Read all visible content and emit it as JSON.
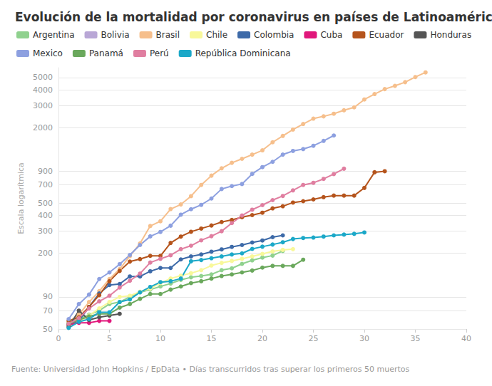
{
  "chart_data": {
    "type": "line",
    "title": "Evolución de la mortalidad por coronavirus en países de Latinoamérica",
    "y_label": "Escala logarítmica",
    "footer": "Fuente: Universidad John Hopkins / EpData • Días transcurridos tras superar los primeros 50 muertos",
    "log": "y",
    "grid": true,
    "legend": "top",
    "marker": "circle",
    "xlim": [
      0,
      40
    ],
    "xticks": [
      0,
      5,
      10,
      15,
      20,
      25,
      30,
      35,
      40
    ],
    "ylim": [
      50,
      6000
    ],
    "yticks": [
      50,
      70,
      90,
      200,
      300,
      400,
      500,
      700,
      900,
      2000,
      3000,
      4000,
      5000
    ],
    "series": [
      {
        "name": "Argentina",
        "color": "#8fd18e",
        "x": [
          1,
          2,
          3,
          4,
          5,
          6,
          7,
          8,
          9,
          10,
          11,
          12,
          13,
          14,
          15,
          16,
          17,
          18,
          19,
          20,
          21,
          22
        ],
        "values": [
          56,
          60,
          65,
          70,
          79,
          82,
          90,
          98,
          103,
          109,
          115,
          123,
          129,
          132,
          136,
          147,
          152,
          165,
          176,
          185,
          192,
          209
        ]
      },
      {
        "name": "Bolivia",
        "color": "#b9a7d6",
        "x": [
          1,
          2,
          3,
          4
        ],
        "values": [
          53,
          59,
          62,
          66
        ]
      },
      {
        "name": "Brasil",
        "color": "#f6bf8c",
        "x": [
          1,
          2,
          3,
          4,
          5,
          6,
          7,
          8,
          9,
          10,
          11,
          12,
          13,
          14,
          15,
          16,
          17,
          18,
          19,
          20,
          21,
          22,
          23,
          24,
          25,
          26,
          27,
          28,
          29,
          30,
          31,
          32,
          33,
          34,
          35,
          36
        ],
        "values": [
          57,
          65,
          82,
          100,
          125,
          150,
          190,
          240,
          330,
          360,
          450,
          490,
          570,
          700,
          830,
          950,
          1050,
          1130,
          1220,
          1320,
          1530,
          1720,
          1930,
          2140,
          2360,
          2460,
          2580,
          2750,
          2900,
          3350,
          3700,
          4050,
          4300,
          4600,
          5050,
          5500
        ]
      },
      {
        "name": "Chile",
        "color": "#f8f89a",
        "x": [
          1,
          2,
          3,
          4,
          5,
          6,
          7,
          8,
          9,
          10,
          11,
          12,
          13,
          14,
          15,
          16,
          17,
          18,
          19,
          20,
          21,
          22,
          23
        ],
        "values": [
          53,
          57,
          64,
          73,
          82,
          90,
          92,
          99,
          105,
          116,
          126,
          133,
          139,
          147,
          160,
          168,
          174,
          181,
          189,
          198,
          207,
          213,
          216
        ]
      },
      {
        "name": "Colombia",
        "color": "#3d6aa8",
        "x": [
          1,
          2,
          3,
          4,
          5,
          6,
          7,
          8,
          9,
          10,
          11,
          12,
          13,
          14,
          15,
          16,
          17,
          18,
          19,
          20,
          21,
          22
        ],
        "values": [
          54,
          58,
          75,
          96,
          112,
          114,
          131,
          131,
          144,
          153,
          153,
          179,
          189,
          196,
          206,
          215,
          225,
          233,
          244,
          253,
          269,
          278
        ]
      },
      {
        "name": "Cuba",
        "color": "#e0177b",
        "x": [
          1,
          2,
          3,
          4,
          5
        ],
        "values": [
          54,
          56,
          56,
          58,
          58
        ]
      },
      {
        "name": "Ecuador",
        "color": "#b5541c",
        "x": [
          1,
          2,
          3,
          4,
          5,
          6,
          7,
          8,
          9,
          10,
          11,
          12,
          13,
          14,
          15,
          16,
          17,
          18,
          19,
          20,
          21,
          22,
          23,
          24,
          25,
          26,
          27,
          28,
          29,
          30,
          31,
          32
        ],
        "values": [
          58,
          62,
          75,
          93,
          120,
          145,
          172,
          180,
          191,
          191,
          242,
          272,
          297,
          315,
          333,
          355,
          369,
          388,
          403,
          421,
          456,
          474,
          507,
          520,
          537,
          560,
          576,
          576,
          576,
          663,
          883,
          900
        ]
      },
      {
        "name": "Honduras",
        "color": "#555555",
        "x": [
          1,
          2,
          3,
          4,
          5,
          6
        ],
        "values": [
          52,
          70,
          59,
          62,
          64,
          66
        ]
      },
      {
        "name": "Mexico",
        "color": "#8da0e0",
        "x": [
          1,
          2,
          3,
          4,
          5,
          6,
          7,
          8,
          9,
          10,
          11,
          12,
          13,
          14,
          15,
          16,
          17,
          18,
          19,
          20,
          21,
          22,
          23,
          24,
          25,
          26,
          27
        ],
        "values": [
          60,
          79,
          94,
          125,
          141,
          164,
          194,
          233,
          273,
          296,
          332,
          406,
          449,
          486,
          546,
          650,
          686,
          712,
          857,
          970,
          1069,
          1221,
          1305,
          1351,
          1434,
          1569,
          1732
        ]
      },
      {
        "name": "Panamá",
        "color": "#6aa85c",
        "x": [
          1,
          2,
          3,
          4,
          5,
          6,
          7,
          8,
          9,
          10,
          11,
          12,
          13,
          14,
          15,
          16,
          17,
          18,
          19,
          20,
          21,
          22,
          23,
          24
        ],
        "values": [
          55,
          59,
          63,
          66,
          66,
          74,
          79,
          87,
          95,
          95,
          103,
          109,
          116,
          120,
          126,
          132,
          136,
          141,
          146,
          154,
          159,
          159,
          159,
          178
        ]
      },
      {
        "name": "Perú",
        "color": "#e07ea0",
        "x": [
          1,
          2,
          3,
          4,
          5,
          6,
          7,
          8,
          9,
          10,
          11,
          12,
          13,
          14,
          15,
          16,
          17,
          18,
          19,
          20,
          21,
          22,
          23,
          24,
          25,
          26,
          27,
          28
        ],
        "values": [
          55,
          61,
          73,
          83,
          92,
          107,
          121,
          138,
          169,
          181,
          193,
          216,
          230,
          254,
          274,
          300,
          348,
          400,
          445,
          484,
          530,
          572,
          634,
          700,
          728,
          782,
          854,
          943
        ]
      },
      {
        "name": "República Dominicana",
        "color": "#1ba8c8",
        "x": [
          1,
          2,
          3,
          4,
          5,
          6,
          7,
          8,
          9,
          10,
          11,
          12,
          13,
          14,
          15,
          16,
          17,
          18,
          19,
          20,
          21,
          22,
          23,
          24,
          25,
          26,
          27,
          28,
          29,
          30
        ],
        "values": [
          51,
          57,
          60,
          68,
          68,
          82,
          86,
          98,
          108,
          118,
          120,
          126,
          173,
          177,
          183,
          189,
          196,
          200,
          217,
          226,
          235,
          245,
          260,
          265,
          267,
          272,
          278,
          282,
          286,
          293
        ]
      }
    ]
  }
}
